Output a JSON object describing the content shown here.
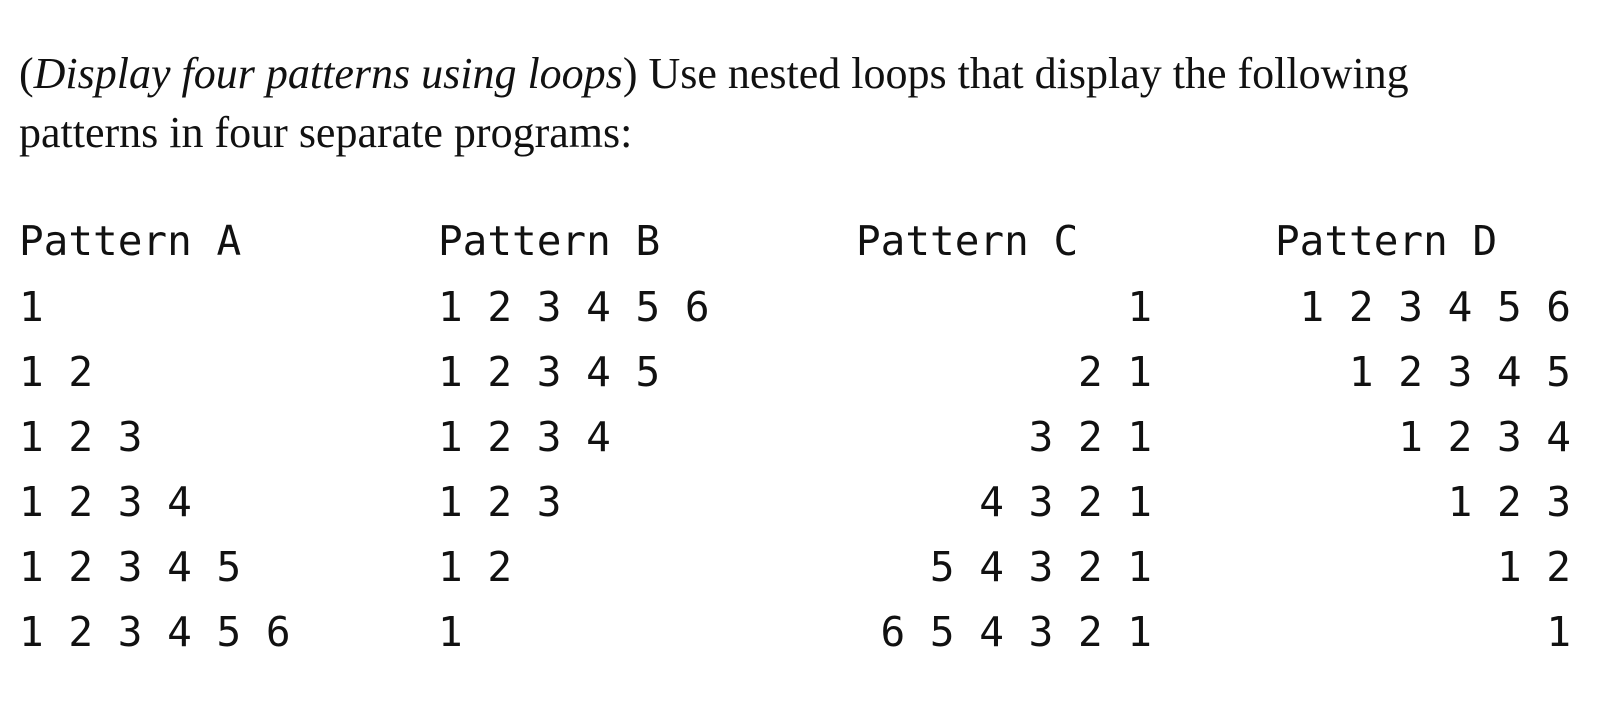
{
  "problem": {
    "open_paren": "(",
    "title": "Display four patterns using loops",
    "close_paren": ")",
    "line1_rest": " Use nested loops that display the following",
    "line2": "patterns in four separate programs:"
  },
  "patterns": [
    {
      "label": "Pattern A",
      "rows": [
        "1",
        "1 2",
        "1 2 3",
        "1 2 3 4",
        "1 2 3 4 5",
        "1 2 3 4 5 6"
      ]
    },
    {
      "label": "Pattern B",
      "rows": [
        "1 2 3 4 5 6",
        "1 2 3 4 5",
        "1 2 3 4",
        "1 2 3",
        "1 2",
        "1"
      ]
    },
    {
      "label": "Pattern C",
      "rows": [
        "1",
        "2 1",
        "3 2 1",
        "4 3 2 1",
        "5 4 3 2 1",
        "6 5 4 3 2 1"
      ]
    },
    {
      "label": "Pattern D",
      "rows": [
        "1 2 3 4 5 6",
        "1 2 3 4 5",
        "1 2 3 4",
        "1 2 3",
        "1 2",
        "1"
      ]
    }
  ]
}
